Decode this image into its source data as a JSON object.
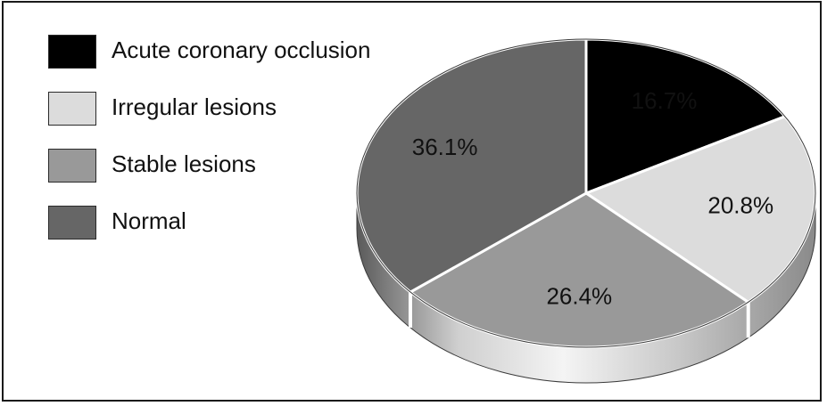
{
  "chart_data": {
    "type": "pie",
    "title": "",
    "legend_placement": "top-left",
    "slices": [
      {
        "label": "Acute coronary occlusion",
        "value": 16.7,
        "value_label": "16.7%",
        "color": "#000000",
        "label_color": "#ffffff"
      },
      {
        "label": "Irregular lesions",
        "value": 20.8,
        "value_label": "20.8%",
        "color": "#dcdcdc",
        "label_color": "#111111"
      },
      {
        "label": "Stable lesions",
        "value": 26.4,
        "value_label": "26.4%",
        "color": "#999999",
        "label_color": "#111111"
      },
      {
        "label": "Normal",
        "value": 36.1,
        "value_label": "36.1%",
        "color": "#666666",
        "label_color": "#111111"
      }
    ]
  }
}
